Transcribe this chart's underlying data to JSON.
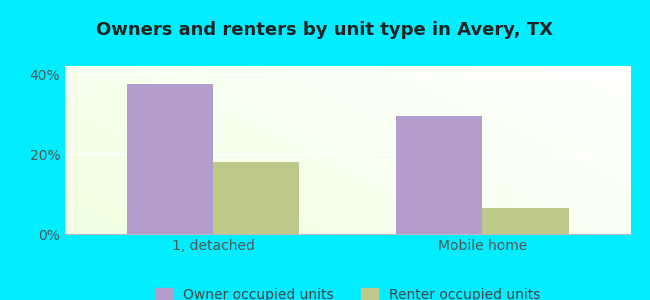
{
  "title": "Owners and renters by unit type in Avery, TX",
  "categories": [
    "1, detached",
    "Mobile home"
  ],
  "owner_values": [
    37.5,
    29.5
  ],
  "renter_values": [
    18.0,
    6.5
  ],
  "owner_color": "#b39dcc",
  "renter_color": "#bec98a",
  "ylim": [
    0,
    42
  ],
  "yticks": [
    0,
    20,
    40
  ],
  "ytick_labels": [
    "0%",
    "20%",
    "40%"
  ],
  "outer_bg": "#00eeff",
  "bar_width": 0.32,
  "legend_owner": "Owner occupied units",
  "legend_renter": "Renter occupied units",
  "title_fontsize": 13,
  "axis_fontsize": 10,
  "legend_fontsize": 10,
  "xlim": [
    -0.55,
    1.55
  ]
}
